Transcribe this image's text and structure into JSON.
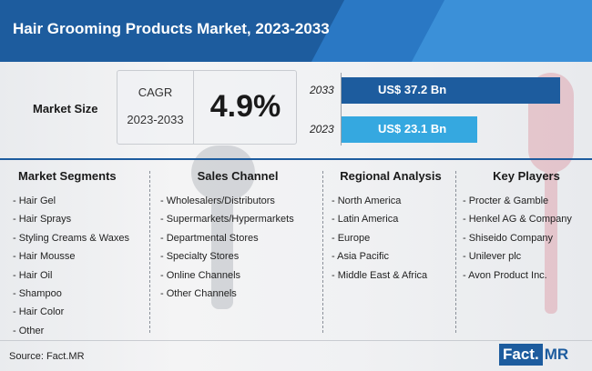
{
  "header": {
    "title": "Hair Grooming Products Market, 2023-2033"
  },
  "market_size": {
    "label": "Market Size",
    "cagr_label": "CAGR",
    "cagr_period": "2023-2033",
    "cagr_value": "4.9%"
  },
  "chart_data": {
    "type": "bar",
    "categories": [
      "2033",
      "2023"
    ],
    "values": [
      37.2,
      23.1
    ],
    "value_labels": [
      "US$ 37.2 Bn",
      "US$ 23.1 Bn"
    ],
    "colors": [
      "#1d5c9e",
      "#35a8e0"
    ]
  },
  "columns": [
    {
      "title": "Market Segments",
      "items": [
        "- Hair Gel",
        "- Hair Sprays",
        "- Styling Creams & Waxes",
        "- Hair Mousse",
        "- Hair Oil",
        "- Shampoo",
        "- Hair Color",
        "- Other"
      ]
    },
    {
      "title": "Sales Channel",
      "items": [
        "- Wholesalers/Distributors",
        "- Supermarkets/Hypermarkets",
        "- Departmental Stores",
        "- Specialty Stores",
        "- Online Channels",
        "- Other Channels"
      ]
    },
    {
      "title": "Regional Analysis",
      "items": [
        "- North America",
        "- Latin America",
        "- Europe",
        "- Asia Pacific",
        "- Middle East & Africa"
      ]
    },
    {
      "title": "Key Players",
      "items": [
        "- Procter & Gamble",
        "- Henkel AG & Company",
        "- Shiseido Company",
        "- Unilever plc",
        "- Avon Product Inc."
      ]
    }
  ],
  "footer": {
    "source": "Source: Fact.MR",
    "logo_part1": "Fact.",
    "logo_part2": "MR"
  },
  "colors": {
    "brand": "#1d5c9e",
    "accent": "#35a8e0"
  }
}
